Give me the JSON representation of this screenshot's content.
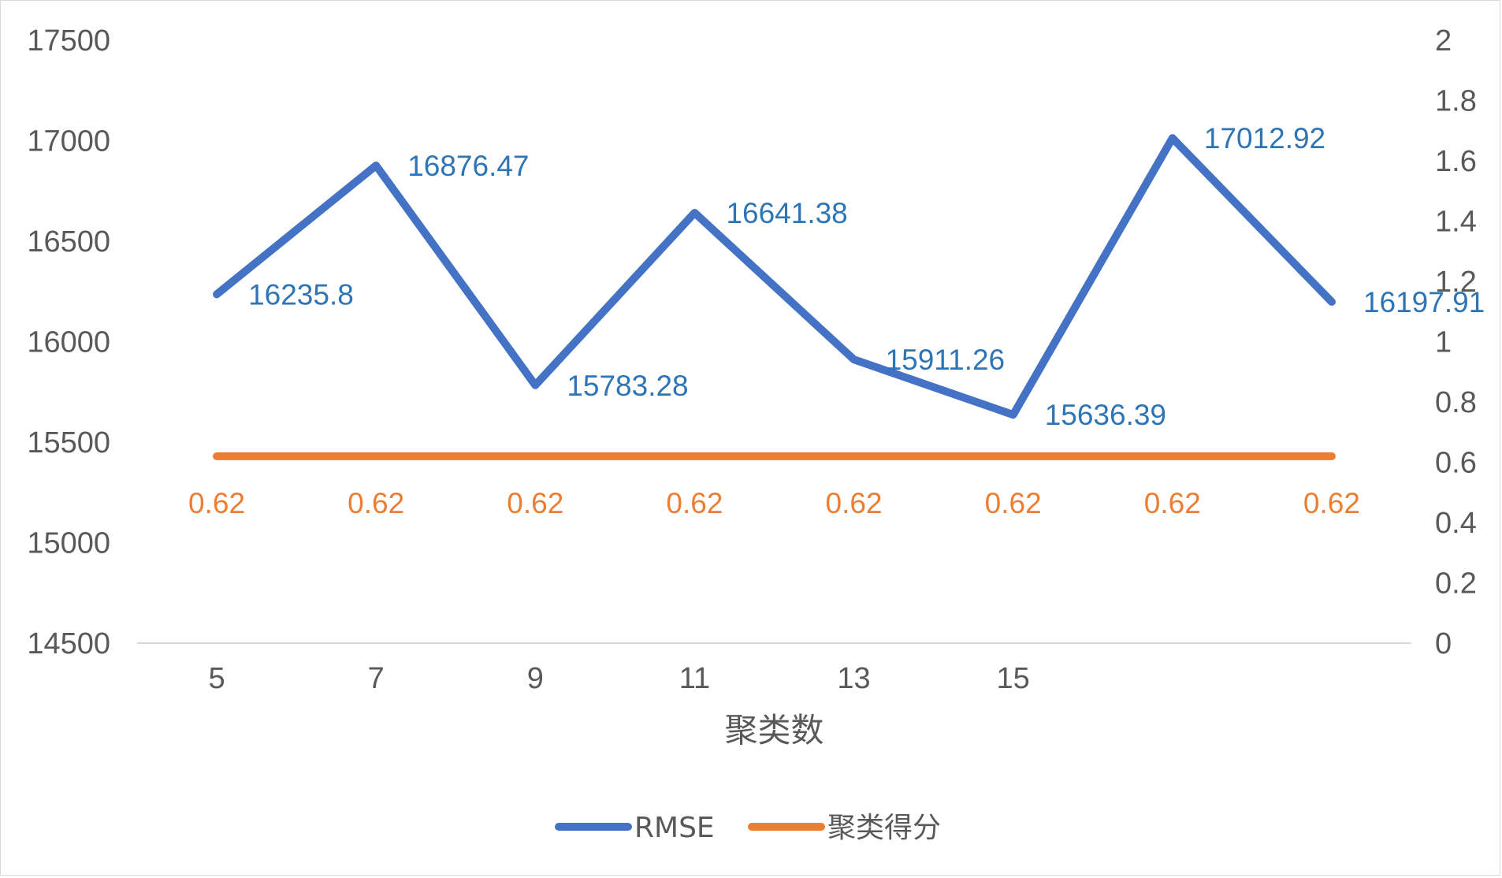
{
  "chart_data": {
    "type": "line",
    "title": "",
    "xlabel": "聚类数",
    "ylabel": "",
    "y2label": "",
    "categories": [
      "5",
      "7",
      "9",
      "11",
      "13",
      "15",
      "",
      ""
    ],
    "y_ticks": [
      "17500",
      "17000",
      "16500",
      "16000",
      "15500",
      "15000",
      "14500"
    ],
    "y2_ticks": [
      "2",
      "1.8",
      "1.6",
      "1.4",
      "1.2",
      "1",
      "0.8",
      "0.6",
      "0.4",
      "0.2",
      "0"
    ],
    "ylim": [
      14500,
      17500
    ],
    "y2lim": [
      0,
      2
    ],
    "grid": false,
    "legend_position": "bottom",
    "series": [
      {
        "name": "RMSE",
        "axis": "left",
        "color": "#4472C4",
        "values": [
          16235.8,
          16876.47,
          15783.28,
          16641.38,
          15911.26,
          15636.39,
          17012.92,
          16197.91
        ],
        "labels": [
          "16235.8",
          "16876.47",
          "15783.28",
          "16641.38",
          "15911.26",
          "15636.39",
          "17012.92",
          "16197.91"
        ],
        "label_color": "#2E75B6"
      },
      {
        "name": "聚类得分",
        "axis": "right",
        "color": "#ED7D31",
        "values": [
          0.62,
          0.62,
          0.62,
          0.62,
          0.62,
          0.62,
          0.62,
          0.62
        ],
        "labels": [
          "0.62",
          "0.62",
          "0.62",
          "0.62",
          "0.62",
          "0.62",
          "0.62",
          "0.62"
        ],
        "label_color": "#ED7D31"
      }
    ]
  }
}
